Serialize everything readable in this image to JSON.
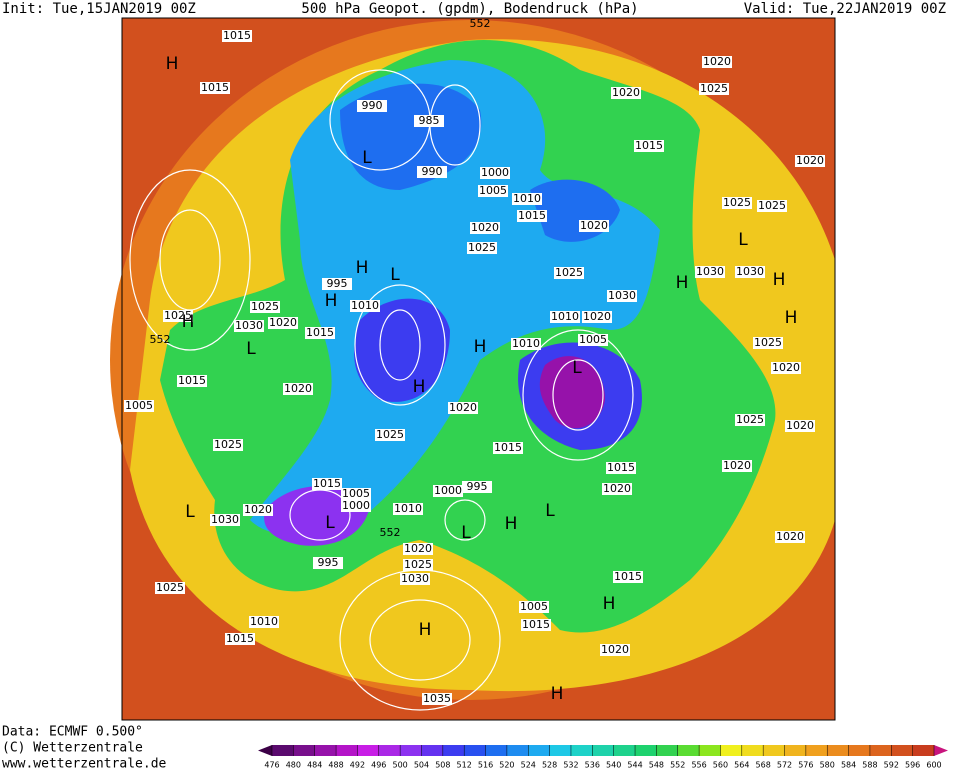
{
  "header": {
    "init": "Init: Tue,15JAN2019 00Z",
    "title": "500 hPa Geopot. (gpdm), Bodendruck (hPa)",
    "valid": "Valid: Tue,22JAN2019 00Z"
  },
  "footer": {
    "data": "Data: ECMWF  0.500°",
    "copyright": "(C) Wetterzentrale",
    "url": "www.wetterzentrale.de"
  },
  "map": {
    "labels": [
      1015,
      1015,
      1020,
      1025,
      1020,
      1015,
      1020,
      1025,
      1025,
      990,
      985,
      990,
      1000,
      1005,
      1010,
      1015,
      1020,
      1025,
      1020,
      1025,
      1030,
      1030,
      1030,
      995,
      1010,
      1025,
      1030,
      1020,
      1015,
      1025,
      1015,
      1020,
      1005,
      1025,
      1020,
      1025,
      1015,
      1010,
      1020,
      1010,
      1005,
      1015,
      1020,
      1025,
      1020,
      1020,
      1020,
      1025,
      1015,
      1005,
      1000,
      1000,
      995,
      1010,
      1030,
      1020,
      995,
      1020,
      1025,
      1030,
      1025,
      1010,
      1015,
      1005,
      1015,
      1015,
      1020,
      1035,
      1020,
      552,
      552,
      552
    ],
    "markers": [
      "H",
      "L",
      "H",
      "L",
      "H",
      "H",
      "L",
      "H",
      "H",
      "L",
      "L",
      "H",
      "L",
      "L",
      "L",
      "H",
      "H",
      "H",
      "L",
      "H",
      "H",
      "H"
    ]
  },
  "colorbar": {
    "levels": [
      476,
      480,
      484,
      488,
      492,
      496,
      500,
      504,
      508,
      512,
      516,
      520,
      524,
      528,
      532,
      536,
      540,
      544,
      548,
      552,
      556,
      560,
      564,
      568,
      572,
      576,
      580,
      584,
      588,
      592,
      596,
      600
    ],
    "colors": [
      "#3c0046",
      "#5a0a6e",
      "#780f8c",
      "#9612aa",
      "#b414c8",
      "#c81ee6",
      "#aa28e6",
      "#8c32f0",
      "#6432f0",
      "#3c3cf0",
      "#2850f0",
      "#1e6ef0",
      "#1e8cf0",
      "#1eaaf0",
      "#1ec8e6",
      "#1ed2c8",
      "#1ed2aa",
      "#1ed28c",
      "#1ed26e",
      "#32d250",
      "#5adc32",
      "#8ce61e",
      "#f0f01e",
      "#f0dc1e",
      "#f0c81e",
      "#f0b41e",
      "#f0a01e",
      "#eb8c1e",
      "#e6781e",
      "#dc641e",
      "#d2501e",
      "#c83c1e",
      "#b4281e",
      "#a01423",
      "#c8147d"
    ]
  }
}
